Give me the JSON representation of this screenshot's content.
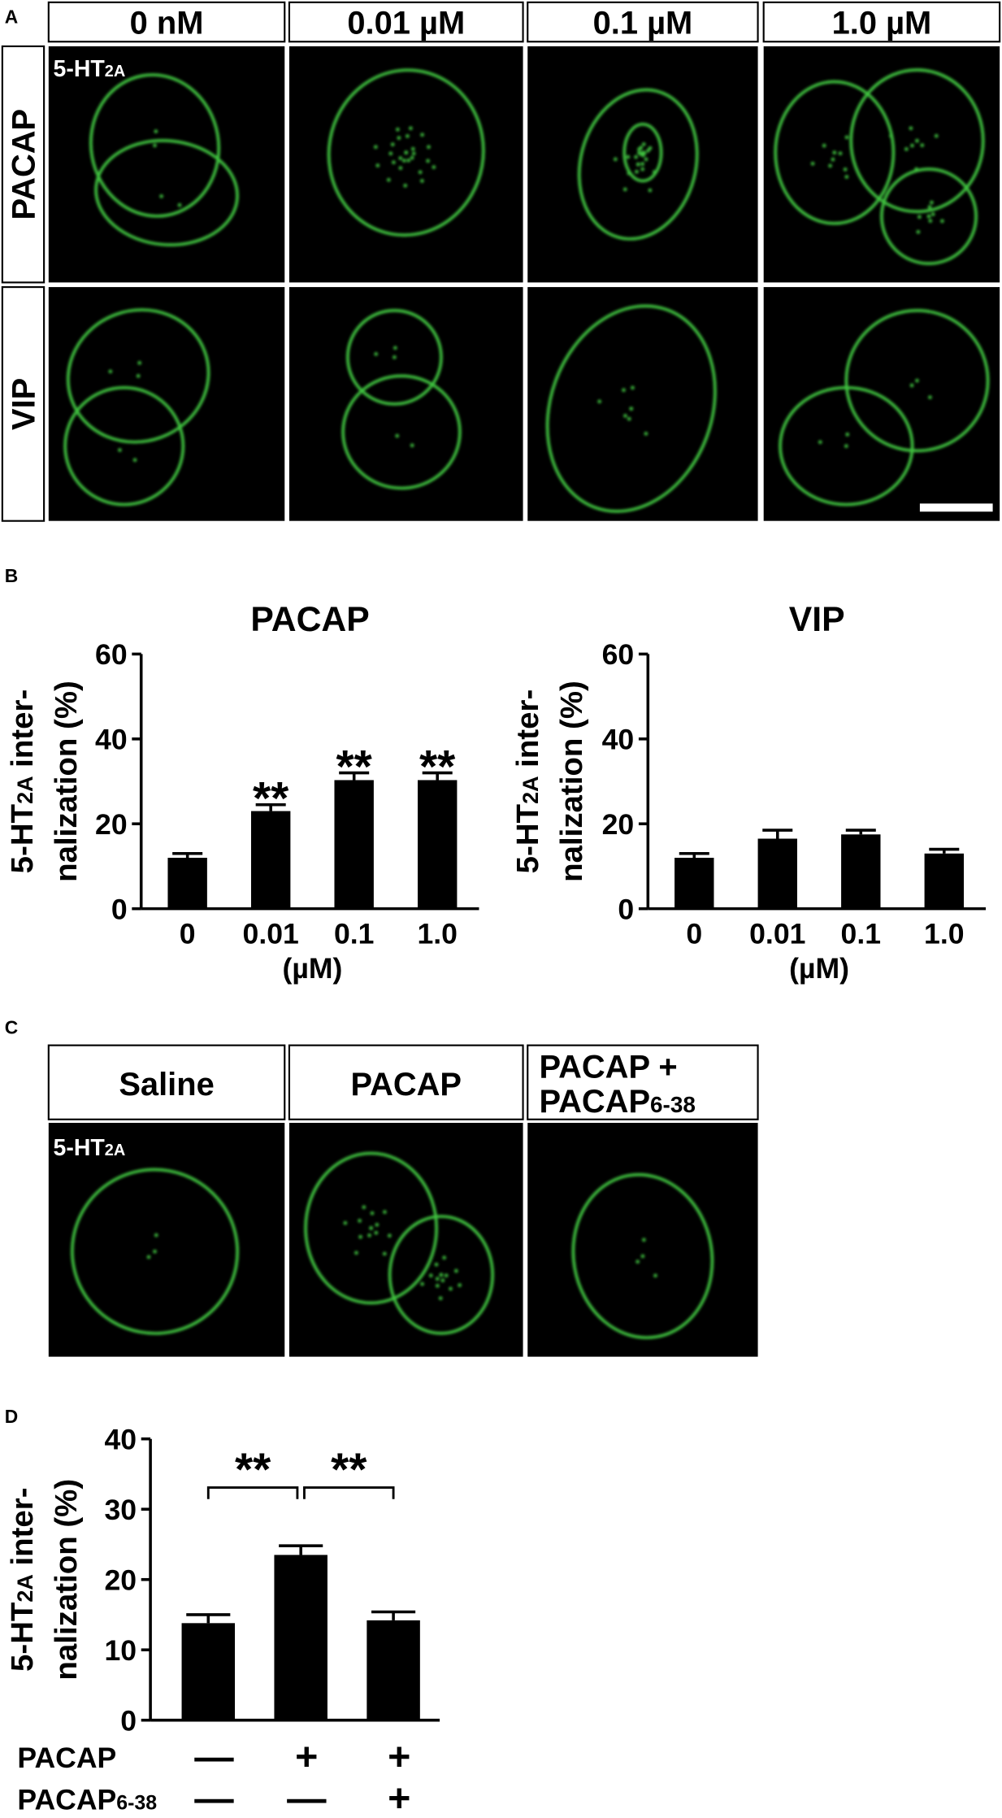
{
  "panel_a": {
    "label": "A",
    "columns": [
      "0 nM",
      "0.01 µM",
      "0.1 µM",
      "1.0 µM"
    ],
    "rows": [
      "PACAP",
      "VIP"
    ],
    "stain": {
      "base": "5-HT",
      "sub": "2A"
    }
  },
  "panel_b": {
    "label": "B"
  },
  "panel_c": {
    "label": "C",
    "columns": [
      "Saline",
      "PACAP",
      {
        "line1": "PACAP +",
        "base": "PACAP",
        "sub": "6-38"
      }
    ],
    "stain": {
      "base": "5-HT",
      "sub": "2A"
    }
  },
  "panel_d": {
    "label": "D",
    "treatments": [
      {
        "name": "PACAP",
        "signs": [
          "—",
          "+",
          "+"
        ]
      },
      {
        "name": {
          "base": "PACAP",
          "sub": "6-38"
        },
        "signs": [
          "—",
          "—",
          "+"
        ]
      }
    ]
  },
  "chart_data": [
    {
      "type": "bar",
      "title": "PACAP",
      "categories": [
        "0",
        "0.01",
        "0.1",
        "1.0"
      ],
      "values": [
        12,
        23,
        30.3,
        30.3
      ],
      "errors": [
        1,
        1.5,
        1.7,
        1.7
      ],
      "annotations": [
        null,
        "**",
        "**",
        "**"
      ],
      "xlabel": "(µM)",
      "ylabel": {
        "base": "5-HT",
        "sub": "2A",
        "rest": " inter-",
        "line2": "nalization (%)"
      },
      "color": "#000000",
      "ylim": [
        0,
        60
      ],
      "yticks": [
        0,
        20,
        40,
        60
      ]
    },
    {
      "type": "bar",
      "title": "VIP",
      "categories": [
        "0",
        "0.01",
        "0.1",
        "1.0"
      ],
      "values": [
        12,
        16.5,
        17.5,
        13
      ],
      "errors": [
        1,
        2,
        1,
        1
      ],
      "xlabel": "(µM)",
      "ylabel": {
        "base": "5-HT",
        "sub": "2A",
        "rest": " inter-",
        "line2": "nalization (%)"
      },
      "color": "#000000",
      "ylim": [
        0,
        60
      ],
      "yticks": [
        0,
        20,
        40,
        60
      ]
    },
    {
      "type": "bar",
      "values": [
        13.8,
        23.5,
        14.2
      ],
      "errors": [
        1.2,
        1.3,
        1.2
      ],
      "comparisons": [
        {
          "from": 0,
          "to": 1,
          "label": "**"
        },
        {
          "from": 1,
          "to": 2,
          "label": "**"
        }
      ],
      "ylabel": {
        "base": "5-HT",
        "sub": "2A",
        "rest": " inter-",
        "line2": "nalization (%)"
      },
      "color": "#000000",
      "ylim": [
        0,
        40
      ],
      "yticks": [
        0,
        10,
        20,
        30,
        40
      ]
    }
  ]
}
